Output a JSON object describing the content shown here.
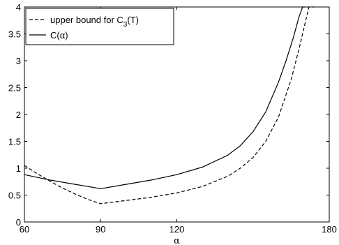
{
  "chart_data": {
    "type": "line",
    "title": "",
    "xlabel": "α",
    "ylabel": "",
    "xlim": [
      60,
      180
    ],
    "ylim": [
      0,
      4
    ],
    "x_ticks": [
      60,
      90,
      120,
      180
    ],
    "y_ticks": [
      0,
      0.5,
      1,
      1.5,
      2,
      2.5,
      3,
      3.5,
      4
    ],
    "grid": false,
    "legend_position": "top-left",
    "series": [
      {
        "name": "upper bound for C3(T)",
        "legend_label": {
          "main": "upper bound for C",
          "sub": "3",
          "tail": "(T)"
        },
        "style": "dashed",
        "color": "#000000",
        "x": [
          60,
          65,
          70,
          75,
          80,
          85,
          90,
          100,
          110,
          120,
          130,
          140,
          145,
          150,
          155,
          160,
          165,
          168,
          170,
          172,
          174
        ],
        "y": [
          1.05,
          0.9,
          0.76,
          0.63,
          0.52,
          0.42,
          0.34,
          0.4,
          0.46,
          0.54,
          0.66,
          0.85,
          1.0,
          1.2,
          1.5,
          1.95,
          2.65,
          3.2,
          3.6,
          4.0,
          4.0
        ]
      },
      {
        "name": "C(α)",
        "legend_label": {
          "main": "C(α)",
          "sub": "",
          "tail": ""
        },
        "style": "solid",
        "color": "#000000",
        "x": [
          60,
          65,
          70,
          75,
          80,
          85,
          90,
          100,
          110,
          120,
          130,
          140,
          145,
          150,
          155,
          160,
          163,
          166,
          168,
          169.5,
          170.5
        ],
        "y": [
          0.88,
          0.83,
          0.78,
          0.74,
          0.7,
          0.66,
          0.62,
          0.7,
          0.78,
          0.88,
          1.02,
          1.24,
          1.42,
          1.68,
          2.05,
          2.6,
          3.0,
          3.45,
          3.8,
          4.0,
          4.0
        ]
      }
    ]
  }
}
